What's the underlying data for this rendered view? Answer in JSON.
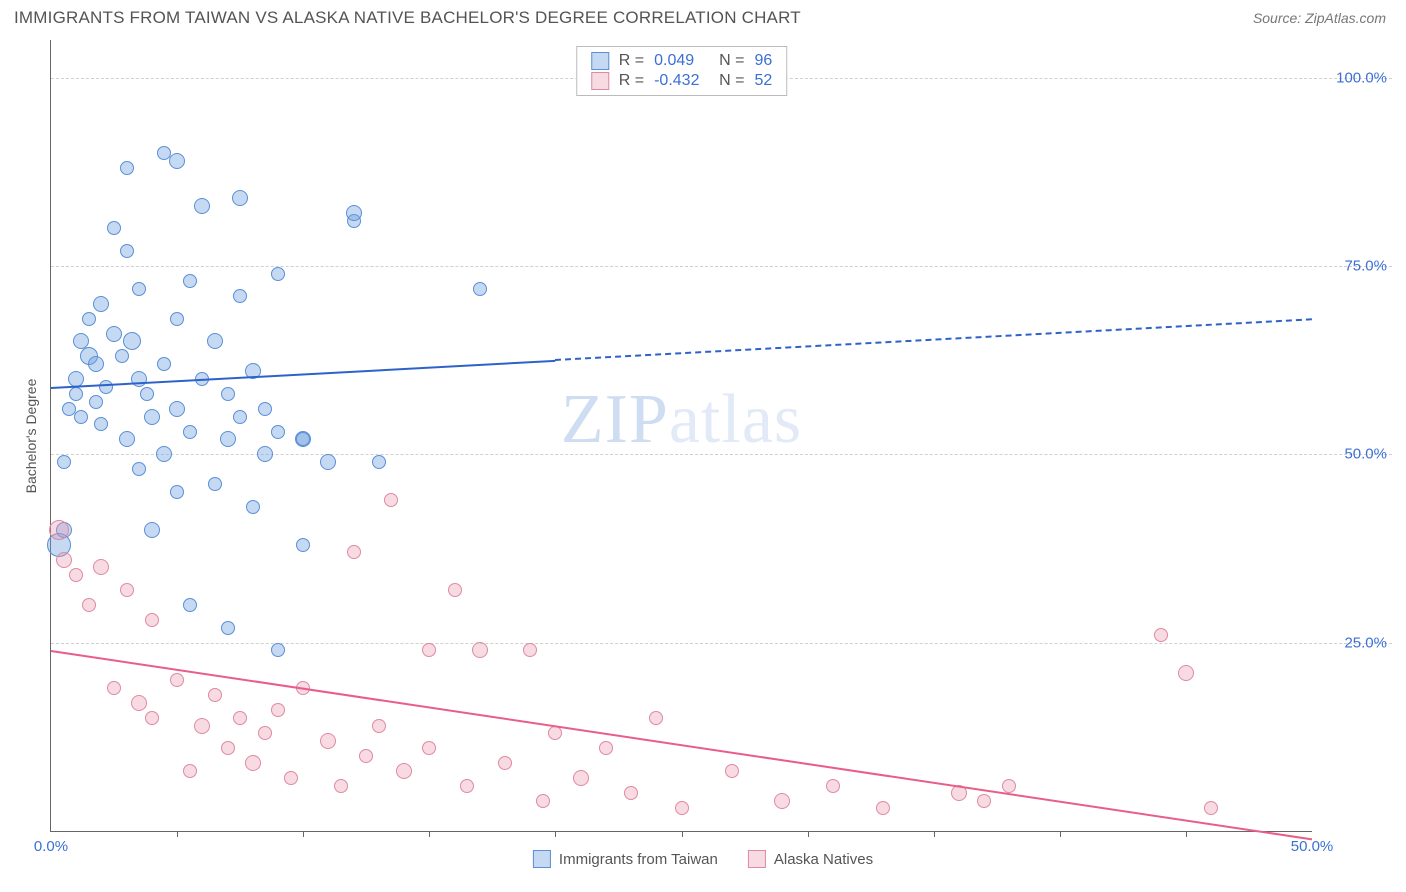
{
  "title": "IMMIGRANTS FROM TAIWAN VS ALASKA NATIVE BACHELOR'S DEGREE CORRELATION CHART",
  "source": "Source: ZipAtlas.com",
  "watermark": {
    "bold": "ZIP",
    "light": "atlas"
  },
  "ylabel": "Bachelor's Degree",
  "chart": {
    "type": "scatter",
    "background_color": "#ffffff",
    "grid_color": "#d0d0d0",
    "axis_color": "#666666",
    "tick_label_color": "#3b6fd6",
    "xlim": [
      0,
      50
    ],
    "ylim": [
      0,
      105
    ],
    "ytick_positions": [
      25,
      50,
      75,
      100
    ],
    "ytick_labels": [
      "25.0%",
      "50.0%",
      "75.0%",
      "100.0%"
    ],
    "xtick_range": {
      "label_left": "0.0%",
      "label_right": "50.0%"
    },
    "xtick_marks": [
      5,
      10,
      15,
      20,
      25,
      30,
      35,
      40,
      45
    ],
    "point_radius_range": [
      6,
      14
    ],
    "series": [
      {
        "name": "Immigrants from Taiwan",
        "fill_color": "rgba(109,160,226,0.40)",
        "stroke_color": "#5a8fd6",
        "trend_color": "#2e62c9",
        "r_value": "0.049",
        "n_value": "96",
        "trend": {
          "y_at_x0": 59,
          "y_at_xmax": 68,
          "solid_until_x": 20
        },
        "points": [
          {
            "x": 0.3,
            "y": 38,
            "r": 12
          },
          {
            "x": 0.5,
            "y": 49,
            "r": 7
          },
          {
            "x": 0.5,
            "y": 40,
            "r": 8
          },
          {
            "x": 0.7,
            "y": 56,
            "r": 7
          },
          {
            "x": 1.0,
            "y": 60,
            "r": 8
          },
          {
            "x": 1.0,
            "y": 58,
            "r": 7
          },
          {
            "x": 1.2,
            "y": 65,
            "r": 8
          },
          {
            "x": 1.2,
            "y": 55,
            "r": 7
          },
          {
            "x": 1.5,
            "y": 63,
            "r": 9
          },
          {
            "x": 1.5,
            "y": 68,
            "r": 7
          },
          {
            "x": 1.8,
            "y": 57,
            "r": 7
          },
          {
            "x": 1.8,
            "y": 62,
            "r": 8
          },
          {
            "x": 2.0,
            "y": 54,
            "r": 7
          },
          {
            "x": 2.0,
            "y": 70,
            "r": 8
          },
          {
            "x": 2.2,
            "y": 59,
            "r": 7
          },
          {
            "x": 2.5,
            "y": 66,
            "r": 8
          },
          {
            "x": 2.5,
            "y": 80,
            "r": 7
          },
          {
            "x": 2.8,
            "y": 63,
            "r": 7
          },
          {
            "x": 3.0,
            "y": 52,
            "r": 8
          },
          {
            "x": 3.0,
            "y": 77,
            "r": 7
          },
          {
            "x": 3.0,
            "y": 88,
            "r": 7
          },
          {
            "x": 3.2,
            "y": 65,
            "r": 9
          },
          {
            "x": 3.5,
            "y": 60,
            "r": 8
          },
          {
            "x": 3.5,
            "y": 72,
            "r": 7
          },
          {
            "x": 3.5,
            "y": 48,
            "r": 7
          },
          {
            "x": 3.8,
            "y": 58,
            "r": 7
          },
          {
            "x": 4.0,
            "y": 55,
            "r": 8
          },
          {
            "x": 4.0,
            "y": 40,
            "r": 8
          },
          {
            "x": 4.5,
            "y": 90,
            "r": 7
          },
          {
            "x": 4.5,
            "y": 62,
            "r": 7
          },
          {
            "x": 4.5,
            "y": 50,
            "r": 8
          },
          {
            "x": 5.0,
            "y": 68,
            "r": 7
          },
          {
            "x": 5.0,
            "y": 56,
            "r": 8
          },
          {
            "x": 5.0,
            "y": 45,
            "r": 7
          },
          {
            "x": 5.0,
            "y": 89,
            "r": 8
          },
          {
            "x": 5.5,
            "y": 53,
            "r": 7
          },
          {
            "x": 5.5,
            "y": 73,
            "r": 7
          },
          {
            "x": 5.5,
            "y": 30,
            "r": 7
          },
          {
            "x": 6.0,
            "y": 83,
            "r": 8
          },
          {
            "x": 6.0,
            "y": 60,
            "r": 7
          },
          {
            "x": 6.5,
            "y": 46,
            "r": 7
          },
          {
            "x": 6.5,
            "y": 65,
            "r": 8
          },
          {
            "x": 7.0,
            "y": 58,
            "r": 7
          },
          {
            "x": 7.0,
            "y": 52,
            "r": 8
          },
          {
            "x": 7.0,
            "y": 27,
            "r": 7
          },
          {
            "x": 7.5,
            "y": 71,
            "r": 7
          },
          {
            "x": 7.5,
            "y": 55,
            "r": 7
          },
          {
            "x": 7.5,
            "y": 84,
            "r": 8
          },
          {
            "x": 8.0,
            "y": 61,
            "r": 8
          },
          {
            "x": 8.0,
            "y": 43,
            "r": 7
          },
          {
            "x": 8.5,
            "y": 56,
            "r": 7
          },
          {
            "x": 8.5,
            "y": 50,
            "r": 8
          },
          {
            "x": 9.0,
            "y": 74,
            "r": 7
          },
          {
            "x": 9.0,
            "y": 53,
            "r": 7
          },
          {
            "x": 9.0,
            "y": 24,
            "r": 7
          },
          {
            "x": 10.0,
            "y": 52,
            "r": 8
          },
          {
            "x": 10.0,
            "y": 52,
            "r": 7
          },
          {
            "x": 10.0,
            "y": 38,
            "r": 7
          },
          {
            "x": 11.0,
            "y": 49,
            "r": 8
          },
          {
            "x": 12.0,
            "y": 81,
            "r": 7
          },
          {
            "x": 12.0,
            "y": 82,
            "r": 8
          },
          {
            "x": 13.0,
            "y": 49,
            "r": 7
          },
          {
            "x": 17.0,
            "y": 72,
            "r": 7
          }
        ]
      },
      {
        "name": "Alaska Natives",
        "fill_color": "rgba(236,148,172,0.35)",
        "stroke_color": "#de8aa3",
        "trend_color": "#e85d8a",
        "r_value": "-0.432",
        "n_value": "52",
        "trend": {
          "y_at_x0": 24,
          "y_at_xmax": -1,
          "solid_until_x": 50
        },
        "points": [
          {
            "x": 0.3,
            "y": 40,
            "r": 10
          },
          {
            "x": 0.5,
            "y": 36,
            "r": 8
          },
          {
            "x": 1.0,
            "y": 34,
            "r": 7
          },
          {
            "x": 1.5,
            "y": 30,
            "r": 7
          },
          {
            "x": 2.0,
            "y": 35,
            "r": 8
          },
          {
            "x": 2.5,
            "y": 19,
            "r": 7
          },
          {
            "x": 3.0,
            "y": 32,
            "r": 7
          },
          {
            "x": 3.5,
            "y": 17,
            "r": 8
          },
          {
            "x": 4.0,
            "y": 15,
            "r": 7
          },
          {
            "x": 4.0,
            "y": 28,
            "r": 7
          },
          {
            "x": 5.0,
            "y": 20,
            "r": 7
          },
          {
            "x": 5.5,
            "y": 8,
            "r": 7
          },
          {
            "x": 6.0,
            "y": 14,
            "r": 8
          },
          {
            "x": 6.5,
            "y": 18,
            "r": 7
          },
          {
            "x": 7.0,
            "y": 11,
            "r": 7
          },
          {
            "x": 7.5,
            "y": 15,
            "r": 7
          },
          {
            "x": 8.0,
            "y": 9,
            "r": 8
          },
          {
            "x": 8.5,
            "y": 13,
            "r": 7
          },
          {
            "x": 9.0,
            "y": 16,
            "r": 7
          },
          {
            "x": 9.5,
            "y": 7,
            "r": 7
          },
          {
            "x": 10.0,
            "y": 19,
            "r": 7
          },
          {
            "x": 11.0,
            "y": 12,
            "r": 8
          },
          {
            "x": 11.5,
            "y": 6,
            "r": 7
          },
          {
            "x": 12.0,
            "y": 37,
            "r": 7
          },
          {
            "x": 12.5,
            "y": 10,
            "r": 7
          },
          {
            "x": 13.0,
            "y": 14,
            "r": 7
          },
          {
            "x": 13.5,
            "y": 44,
            "r": 7
          },
          {
            "x": 14.0,
            "y": 8,
            "r": 8
          },
          {
            "x": 15.0,
            "y": 11,
            "r": 7
          },
          {
            "x": 15.0,
            "y": 24,
            "r": 7
          },
          {
            "x": 16.0,
            "y": 32,
            "r": 7
          },
          {
            "x": 16.5,
            "y": 6,
            "r": 7
          },
          {
            "x": 17.0,
            "y": 24,
            "r": 8
          },
          {
            "x": 18.0,
            "y": 9,
            "r": 7
          },
          {
            "x": 19.0,
            "y": 24,
            "r": 7
          },
          {
            "x": 19.5,
            "y": 4,
            "r": 7
          },
          {
            "x": 20.0,
            "y": 13,
            "r": 7
          },
          {
            "x": 21.0,
            "y": 7,
            "r": 8
          },
          {
            "x": 22.0,
            "y": 11,
            "r": 7
          },
          {
            "x": 23.0,
            "y": 5,
            "r": 7
          },
          {
            "x": 24.0,
            "y": 15,
            "r": 7
          },
          {
            "x": 25.0,
            "y": 3,
            "r": 7
          },
          {
            "x": 27.0,
            "y": 8,
            "r": 7
          },
          {
            "x": 29.0,
            "y": 4,
            "r": 8
          },
          {
            "x": 31.0,
            "y": 6,
            "r": 7
          },
          {
            "x": 33.0,
            "y": 3,
            "r": 7
          },
          {
            "x": 36.0,
            "y": 5,
            "r": 8
          },
          {
            "x": 37.0,
            "y": 4,
            "r": 7
          },
          {
            "x": 38.0,
            "y": 6,
            "r": 7
          },
          {
            "x": 44.0,
            "y": 26,
            "r": 7
          },
          {
            "x": 45.0,
            "y": 21,
            "r": 8
          },
          {
            "x": 46.0,
            "y": 3,
            "r": 7
          }
        ]
      }
    ]
  },
  "legend_top": {
    "r_label": "R =",
    "n_label": "N =",
    "r_color": "#3b6fd6",
    "n_color": "#3b6fd6"
  },
  "legend_bottom_labels": [
    "Immigrants from Taiwan",
    "Alaska Natives"
  ]
}
